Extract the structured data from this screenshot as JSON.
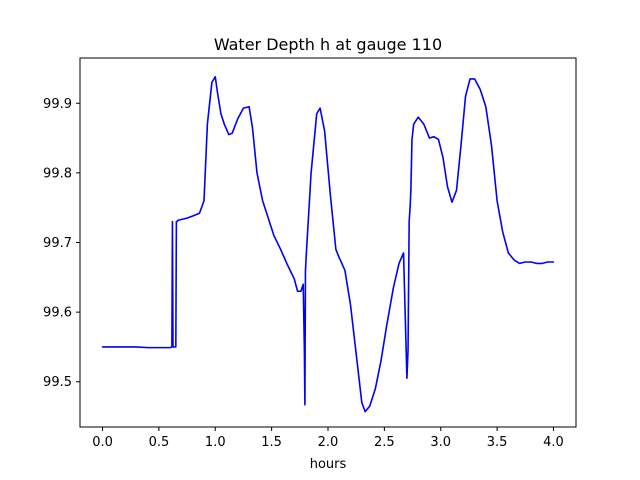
{
  "chart_data": {
    "type": "line",
    "title": "Water Depth h at gauge 110",
    "xlabel": "hours",
    "ylabel": "",
    "xlim": [
      -0.2,
      4.2
    ],
    "ylim": [
      99.435,
      99.965
    ],
    "xticks": [
      0.0,
      0.5,
      1.0,
      1.5,
      2.0,
      2.5,
      3.0,
      3.5,
      4.0
    ],
    "xtick_labels": [
      "0.0",
      "0.5",
      "1.0",
      "1.5",
      "2.0",
      "2.5",
      "3.0",
      "3.5",
      "4.0"
    ],
    "yticks": [
      99.5,
      99.6,
      99.7,
      99.8,
      99.9
    ],
    "ytick_labels": [
      "99.5",
      "99.6",
      "99.7",
      "99.8",
      "99.9"
    ],
    "grid": false,
    "legend": "none",
    "series": [
      {
        "color": "#0000ff",
        "x": [
          0.0,
          0.3,
          0.4,
          0.6,
          0.615,
          0.62,
          0.625,
          0.63,
          0.64,
          0.65,
          0.655,
          0.66,
          0.67,
          0.75,
          0.8,
          0.86,
          0.9,
          0.93,
          0.97,
          1.0,
          1.02,
          1.05,
          1.08,
          1.12,
          1.15,
          1.2,
          1.25,
          1.3,
          1.33,
          1.37,
          1.42,
          1.47,
          1.52,
          1.58,
          1.64,
          1.7,
          1.73,
          1.76,
          1.78,
          1.79,
          1.795,
          1.8,
          1.805,
          1.81,
          1.85,
          1.9,
          1.93,
          1.97,
          2.02,
          2.07,
          2.1,
          2.15,
          2.2,
          2.25,
          2.3,
          2.33,
          2.37,
          2.42,
          2.47,
          2.52,
          2.58,
          2.63,
          2.67,
          2.7,
          2.705,
          2.71,
          2.72,
          2.73,
          2.735,
          2.74,
          2.745,
          2.76,
          2.8,
          2.85,
          2.9,
          2.94,
          2.98,
          3.02,
          3.06,
          3.1,
          3.14,
          3.18,
          3.22,
          3.26,
          3.3,
          3.35,
          3.4,
          3.45,
          3.5,
          3.55,
          3.6,
          3.65,
          3.7,
          3.75,
          3.8,
          3.85,
          3.9,
          3.95,
          4.0
        ],
        "y": [
          99.55,
          99.55,
          99.549,
          99.549,
          99.55,
          99.73,
          99.55,
          99.55,
          99.55,
          99.55,
          99.73,
          99.73,
          99.732,
          99.735,
          99.738,
          99.742,
          99.76,
          99.87,
          99.93,
          99.938,
          99.915,
          99.885,
          99.87,
          99.855,
          99.857,
          99.878,
          99.893,
          99.895,
          99.865,
          99.8,
          99.76,
          99.735,
          99.71,
          99.69,
          99.668,
          99.648,
          99.63,
          99.63,
          99.64,
          99.55,
          99.467,
          99.66,
          99.675,
          99.69,
          99.8,
          99.885,
          99.893,
          99.86,
          99.77,
          99.69,
          99.678,
          99.66,
          99.61,
          99.54,
          99.47,
          99.457,
          99.465,
          99.49,
          99.53,
          99.58,
          99.635,
          99.67,
          99.685,
          99.505,
          99.525,
          99.545,
          99.73,
          99.755,
          99.775,
          99.81,
          99.848,
          99.87,
          99.88,
          99.87,
          99.85,
          99.852,
          99.848,
          99.822,
          99.78,
          99.758,
          99.775,
          99.84,
          99.91,
          99.935,
          99.935,
          99.92,
          99.895,
          99.84,
          99.76,
          99.715,
          99.685,
          99.675,
          99.67,
          99.672,
          99.672,
          99.67,
          99.67,
          99.672,
          99.672
        ]
      }
    ]
  }
}
